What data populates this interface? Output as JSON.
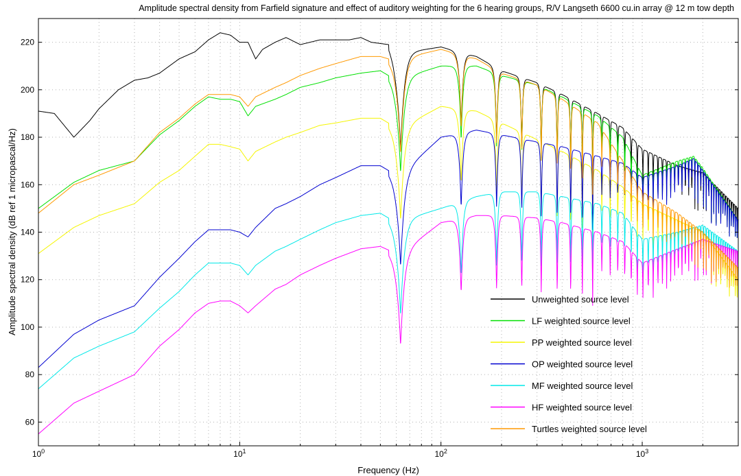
{
  "chart_data": {
    "type": "line",
    "title": "Amplitude spectral density from Farfield signature and effect of auditory weighting for the 6 hearing groups, R/V Langseth 6600 cu.in array @ 12 m  tow depth",
    "xlabel": "Frequency (Hz)",
    "ylabel": "Amplitude spectral density (dB ref 1 micropascal/Hz)",
    "x_scale": "log",
    "xlim": [
      1,
      3000
    ],
    "ylim": [
      50,
      230
    ],
    "grid": true,
    "legend_position": "bottom-right",
    "x_ticks": [
      {
        "value": 1,
        "base": "10",
        "exp": "0"
      },
      {
        "value": 10,
        "base": "10",
        "exp": "1"
      },
      {
        "value": 100,
        "base": "10",
        "exp": "2"
      },
      {
        "value": 1000,
        "base": "10",
        "exp": "3"
      }
    ],
    "y_ticks": [
      "60",
      "80",
      "100",
      "120",
      "140",
      "160",
      "180",
      "200",
      "220"
    ],
    "notch_frequencies": [
      63,
      126,
      189,
      252,
      315,
      378,
      441,
      504,
      567,
      630,
      693,
      756,
      819,
      882,
      945,
      1008,
      1071,
      1134,
      1197,
      1260,
      1323,
      1386,
      1449,
      1512,
      1575,
      1638,
      1701,
      1764,
      1827,
      1890,
      1953,
      2016,
      2079,
      2142,
      2205,
      2268,
      2331,
      2394,
      2457,
      2520,
      2583,
      2646,
      2709,
      2772,
      2835,
      2898
    ],
    "series": [
      {
        "name": "Unweighted source level",
        "color": "#000000",
        "envelope": [
          [
            1,
            191
          ],
          [
            1.2,
            190
          ],
          [
            1.5,
            180
          ],
          [
            1.8,
            187
          ],
          [
            2,
            192
          ],
          [
            2.5,
            200
          ],
          [
            3,
            204
          ],
          [
            3.5,
            205
          ],
          [
            4,
            207
          ],
          [
            5,
            213
          ],
          [
            6,
            216
          ],
          [
            7,
            221
          ],
          [
            8,
            224
          ],
          [
            9,
            223
          ],
          [
            10,
            220
          ],
          [
            11,
            220
          ],
          [
            12,
            213
          ],
          [
            13,
            217
          ],
          [
            15,
            220
          ],
          [
            17,
            222
          ],
          [
            20,
            219
          ],
          [
            25,
            221
          ],
          [
            30,
            221
          ],
          [
            35,
            221
          ],
          [
            40,
            222
          ],
          [
            45,
            220
          ],
          [
            55,
            219
          ],
          [
            60,
            214
          ],
          [
            70,
            216
          ],
          [
            100,
            218
          ],
          [
            150,
            214
          ],
          [
            200,
            208
          ],
          [
            300,
            203
          ],
          [
            400,
            198
          ],
          [
            600,
            190
          ],
          [
            800,
            184
          ],
          [
            1000,
            175
          ],
          [
            1500,
            168
          ],
          [
            2000,
            165
          ],
          [
            3000,
            150
          ]
        ]
      },
      {
        "name": "LF weighted source level",
        "color": "#00e000",
        "envelope": [
          [
            1,
            150
          ],
          [
            1.5,
            161
          ],
          [
            2,
            166
          ],
          [
            3,
            170
          ],
          [
            4,
            181
          ],
          [
            5,
            187
          ],
          [
            6,
            193
          ],
          [
            7,
            197
          ],
          [
            8,
            196
          ],
          [
            9,
            196
          ],
          [
            10,
            195
          ],
          [
            11,
            189
          ],
          [
            12,
            193
          ],
          [
            15,
            196
          ],
          [
            17,
            198
          ],
          [
            20,
            201
          ],
          [
            25,
            203
          ],
          [
            30,
            205
          ],
          [
            40,
            207
          ],
          [
            50,
            208
          ],
          [
            60,
            204
          ],
          [
            70,
            206
          ],
          [
            100,
            210
          ],
          [
            150,
            210
          ],
          [
            200,
            206
          ],
          [
            300,
            202
          ],
          [
            400,
            197
          ],
          [
            600,
            189
          ],
          [
            800,
            180
          ],
          [
            1000,
            164
          ],
          [
            1500,
            170
          ],
          [
            1800,
            172
          ],
          [
            2000,
            167
          ],
          [
            3000,
            145
          ]
        ]
      },
      {
        "name": "PP weighted source level",
        "color": "#f5f500",
        "envelope": [
          [
            1,
            131
          ],
          [
            1.5,
            142
          ],
          [
            2,
            147
          ],
          [
            3,
            152
          ],
          [
            4,
            161
          ],
          [
            5,
            166
          ],
          [
            6,
            172
          ],
          [
            7,
            177
          ],
          [
            8,
            177
          ],
          [
            9,
            176
          ],
          [
            10,
            175
          ],
          [
            11,
            170
          ],
          [
            12,
            174
          ],
          [
            15,
            178
          ],
          [
            17,
            180
          ],
          [
            20,
            182
          ],
          [
            25,
            185
          ],
          [
            30,
            186
          ],
          [
            40,
            188
          ],
          [
            50,
            188
          ],
          [
            60,
            184
          ],
          [
            70,
            186
          ],
          [
            100,
            193
          ],
          [
            150,
            191
          ],
          [
            200,
            186
          ],
          [
            300,
            179
          ],
          [
            400,
            174
          ],
          [
            600,
            166
          ],
          [
            800,
            159
          ],
          [
            1000,
            152
          ],
          [
            1500,
            145
          ],
          [
            2000,
            140
          ],
          [
            3000,
            120
          ]
        ]
      },
      {
        "name": "OP weighted source level",
        "color": "#0000d0",
        "envelope": [
          [
            1,
            83
          ],
          [
            1.5,
            97
          ],
          [
            2,
            103
          ],
          [
            3,
            109
          ],
          [
            4,
            121
          ],
          [
            5,
            129
          ],
          [
            6,
            136
          ],
          [
            7,
            141
          ],
          [
            8,
            141
          ],
          [
            9,
            141
          ],
          [
            10,
            140
          ],
          [
            11,
            138
          ],
          [
            12,
            142
          ],
          [
            15,
            150
          ],
          [
            17,
            152
          ],
          [
            20,
            155
          ],
          [
            25,
            160
          ],
          [
            30,
            163
          ],
          [
            40,
            168
          ],
          [
            50,
            168
          ],
          [
            60,
            164
          ],
          [
            70,
            168
          ],
          [
            100,
            180
          ],
          [
            150,
            183
          ],
          [
            200,
            181
          ],
          [
            300,
            178
          ],
          [
            400,
            176
          ],
          [
            600,
            172
          ],
          [
            800,
            169
          ],
          [
            1000,
            163
          ],
          [
            1500,
            168
          ],
          [
            1800,
            171
          ],
          [
            2000,
            166
          ],
          [
            3000,
            145
          ]
        ]
      },
      {
        "name": "MF weighted source level",
        "color": "#00e8e8",
        "envelope": [
          [
            1,
            74
          ],
          [
            1.5,
            87
          ],
          [
            2,
            92
          ],
          [
            3,
            98
          ],
          [
            4,
            108
          ],
          [
            5,
            115
          ],
          [
            6,
            122
          ],
          [
            7,
            127
          ],
          [
            8,
            127
          ],
          [
            9,
            127
          ],
          [
            10,
            126
          ],
          [
            11,
            122
          ],
          [
            12,
            126
          ],
          [
            15,
            132
          ],
          [
            17,
            134
          ],
          [
            20,
            137
          ],
          [
            25,
            141
          ],
          [
            30,
            144
          ],
          [
            40,
            147
          ],
          [
            50,
            148
          ],
          [
            60,
            144
          ],
          [
            70,
            146
          ],
          [
            100,
            150
          ],
          [
            150,
            155
          ],
          [
            200,
            157
          ],
          [
            300,
            157
          ],
          [
            400,
            155
          ],
          [
            600,
            152
          ],
          [
            800,
            148
          ],
          [
            1000,
            137
          ],
          [
            1500,
            140
          ],
          [
            2000,
            143
          ],
          [
            3000,
            132
          ]
        ]
      },
      {
        "name": "HF weighted source level",
        "color": "#ff00ff",
        "envelope": [
          [
            1,
            55
          ],
          [
            1.5,
            68
          ],
          [
            2,
            73
          ],
          [
            3,
            80
          ],
          [
            4,
            92
          ],
          [
            5,
            99
          ],
          [
            6,
            106
          ],
          [
            7,
            110
          ],
          [
            8,
            111
          ],
          [
            9,
            111
          ],
          [
            10,
            109
          ],
          [
            11,
            106
          ],
          [
            12,
            109
          ],
          [
            15,
            116
          ],
          [
            17,
            118
          ],
          [
            20,
            122
          ],
          [
            25,
            126
          ],
          [
            30,
            129
          ],
          [
            40,
            133
          ],
          [
            50,
            134
          ],
          [
            60,
            131
          ],
          [
            70,
            134
          ],
          [
            100,
            144
          ],
          [
            150,
            147
          ],
          [
            200,
            147
          ],
          [
            300,
            146
          ],
          [
            400,
            144
          ],
          [
            600,
            140
          ],
          [
            800,
            136
          ],
          [
            1000,
            127
          ],
          [
            1500,
            133
          ],
          [
            2000,
            137
          ],
          [
            3000,
            132
          ]
        ]
      },
      {
        "name": "Turtles weighted source level",
        "color": "#ff9900",
        "envelope": [
          [
            1,
            148
          ],
          [
            1.5,
            160
          ],
          [
            2,
            164
          ],
          [
            3,
            170
          ],
          [
            4,
            182
          ],
          [
            5,
            188
          ],
          [
            6,
            194
          ],
          [
            7,
            198
          ],
          [
            8,
            198
          ],
          [
            9,
            198
          ],
          [
            10,
            197
          ],
          [
            11,
            193
          ],
          [
            12,
            197
          ],
          [
            15,
            201
          ],
          [
            17,
            203
          ],
          [
            20,
            206
          ],
          [
            25,
            209
          ],
          [
            30,
            211
          ],
          [
            40,
            214
          ],
          [
            50,
            214
          ],
          [
            60,
            212
          ],
          [
            70,
            214
          ],
          [
            100,
            217
          ],
          [
            150,
            213
          ],
          [
            200,
            207
          ],
          [
            300,
            202
          ],
          [
            400,
            196
          ],
          [
            600,
            186
          ],
          [
            800,
            170
          ],
          [
            1000,
            157
          ],
          [
            1500,
            148
          ],
          [
            2000,
            140
          ],
          [
            3000,
            125
          ]
        ]
      }
    ]
  }
}
